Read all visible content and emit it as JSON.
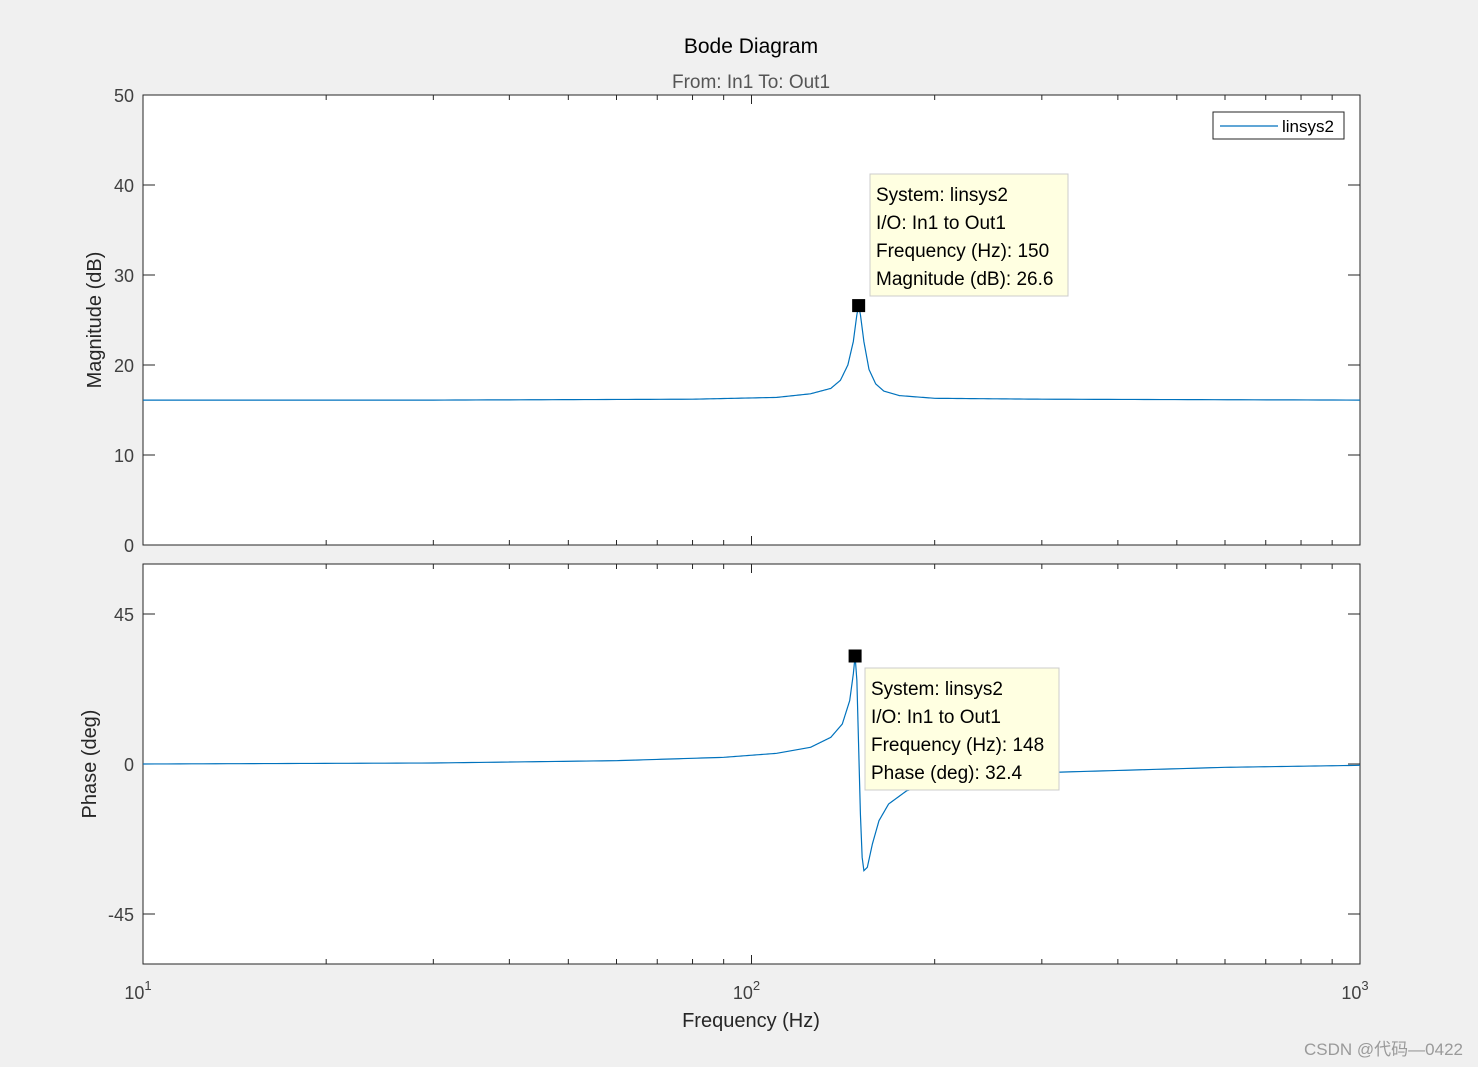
{
  "chart_data": {
    "type": "line",
    "title": "Bode Diagram",
    "subtitle": "From: In1  To: Out1",
    "xlabel": "Frequency  (Hz)",
    "x_scale": "log",
    "xlim": [
      10,
      1000
    ],
    "x_ticks": [
      {
        "value": 10,
        "base": "10",
        "exp": "1"
      },
      {
        "value": 100,
        "base": "10",
        "exp": "2"
      },
      {
        "value": 1000,
        "base": "10",
        "exp": "3"
      }
    ],
    "legend": {
      "position": "top-right",
      "entries": [
        "linsys2"
      ]
    },
    "line_color": "#0072BD",
    "panels": [
      {
        "id": "magnitude",
        "ylabel": "Magnitude (dB)",
        "ylim": [
          0,
          50
        ],
        "y_ticks": [
          0,
          10,
          20,
          30,
          40,
          50
        ],
        "series": [
          {
            "name": "linsys2",
            "x": [
              10,
              30,
              80,
              110,
              125,
              135,
              140,
              144,
              147,
              149,
              150,
              151,
              153,
              156,
              160,
              165,
              175,
              200,
              300,
              1000
            ],
            "y": [
              16.1,
              16.1,
              16.2,
              16.4,
              16.8,
              17.4,
              18.3,
              20.0,
              22.6,
              25.6,
              26.6,
              25.6,
              22.6,
              19.5,
              17.9,
              17.1,
              16.6,
              16.3,
              16.2,
              16.1
            ]
          }
        ],
        "datatip": {
          "x": 150,
          "y": 26.6,
          "lines": [
            "System: linsys2",
            "I/O: In1 to Out1",
            "Frequency (Hz): 150",
            "Magnitude (dB): 26.6"
          ]
        }
      },
      {
        "id": "phase",
        "ylabel": "Phase (deg)",
        "ylim": [
          -60,
          60
        ],
        "y_ticks": [
          -45,
          0,
          45
        ],
        "series": [
          {
            "name": "linsys2",
            "x": [
              10,
              30,
              60,
              90,
              110,
              125,
              135,
              141,
              145,
              147,
              148,
              149,
              150,
              151,
              152,
              153,
              155,
              158,
              162,
              168,
              180,
              200,
              300,
              600,
              1000
            ],
            "y": [
              0,
              0.3,
              1.0,
              2.0,
              3.2,
              5.0,
              8.0,
              12.0,
              19.0,
              27.0,
              32.4,
              25.0,
              5.0,
              -15.0,
              -28.0,
              -32.0,
              -31.0,
              -24.0,
              -17.0,
              -12.0,
              -8.0,
              -5.8,
              -2.6,
              -1.0,
              -0.4
            ]
          }
        ],
        "datatip": {
          "x": 148,
          "y": 32.4,
          "lines": [
            "System: linsys2",
            "I/O: In1 to Out1",
            "Frequency (Hz): 148",
            "Phase (deg): 32.4"
          ]
        }
      }
    ]
  },
  "watermark": "CSDN @代码—0422"
}
